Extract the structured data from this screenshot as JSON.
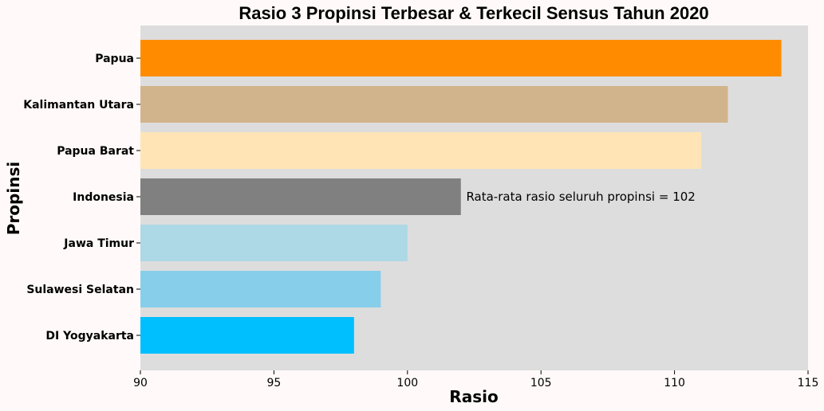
{
  "chart_data": {
    "type": "bar",
    "orientation": "horizontal",
    "title": "Rasio 3 Propinsi Terbesar & Terkecil Sensus Tahun 2020",
    "xlabel": "Rasio",
    "ylabel": "Propinsi",
    "xlim": [
      90,
      115
    ],
    "xticks": [
      90,
      95,
      100,
      105,
      110,
      115
    ],
    "grid": false,
    "background": "#dddddd",
    "categories": [
      "Papua",
      "Kalimantan Utara",
      "Papua Barat",
      "Indonesia",
      "Jawa Timur",
      "Sulawesi Selatan",
      "DI Yogyakarta"
    ],
    "values": [
      114,
      112,
      111,
      102,
      100,
      99,
      98
    ],
    "colors": [
      "#ff8c00",
      "#d2b48c",
      "#ffe4b5",
      "#808080",
      "#add8e6",
      "#87ceeb",
      "#00bfff"
    ],
    "annotation": {
      "text": "Rata-rata rasio seluruh propinsi = 102",
      "category": "Indonesia",
      "x": 102.2
    }
  }
}
